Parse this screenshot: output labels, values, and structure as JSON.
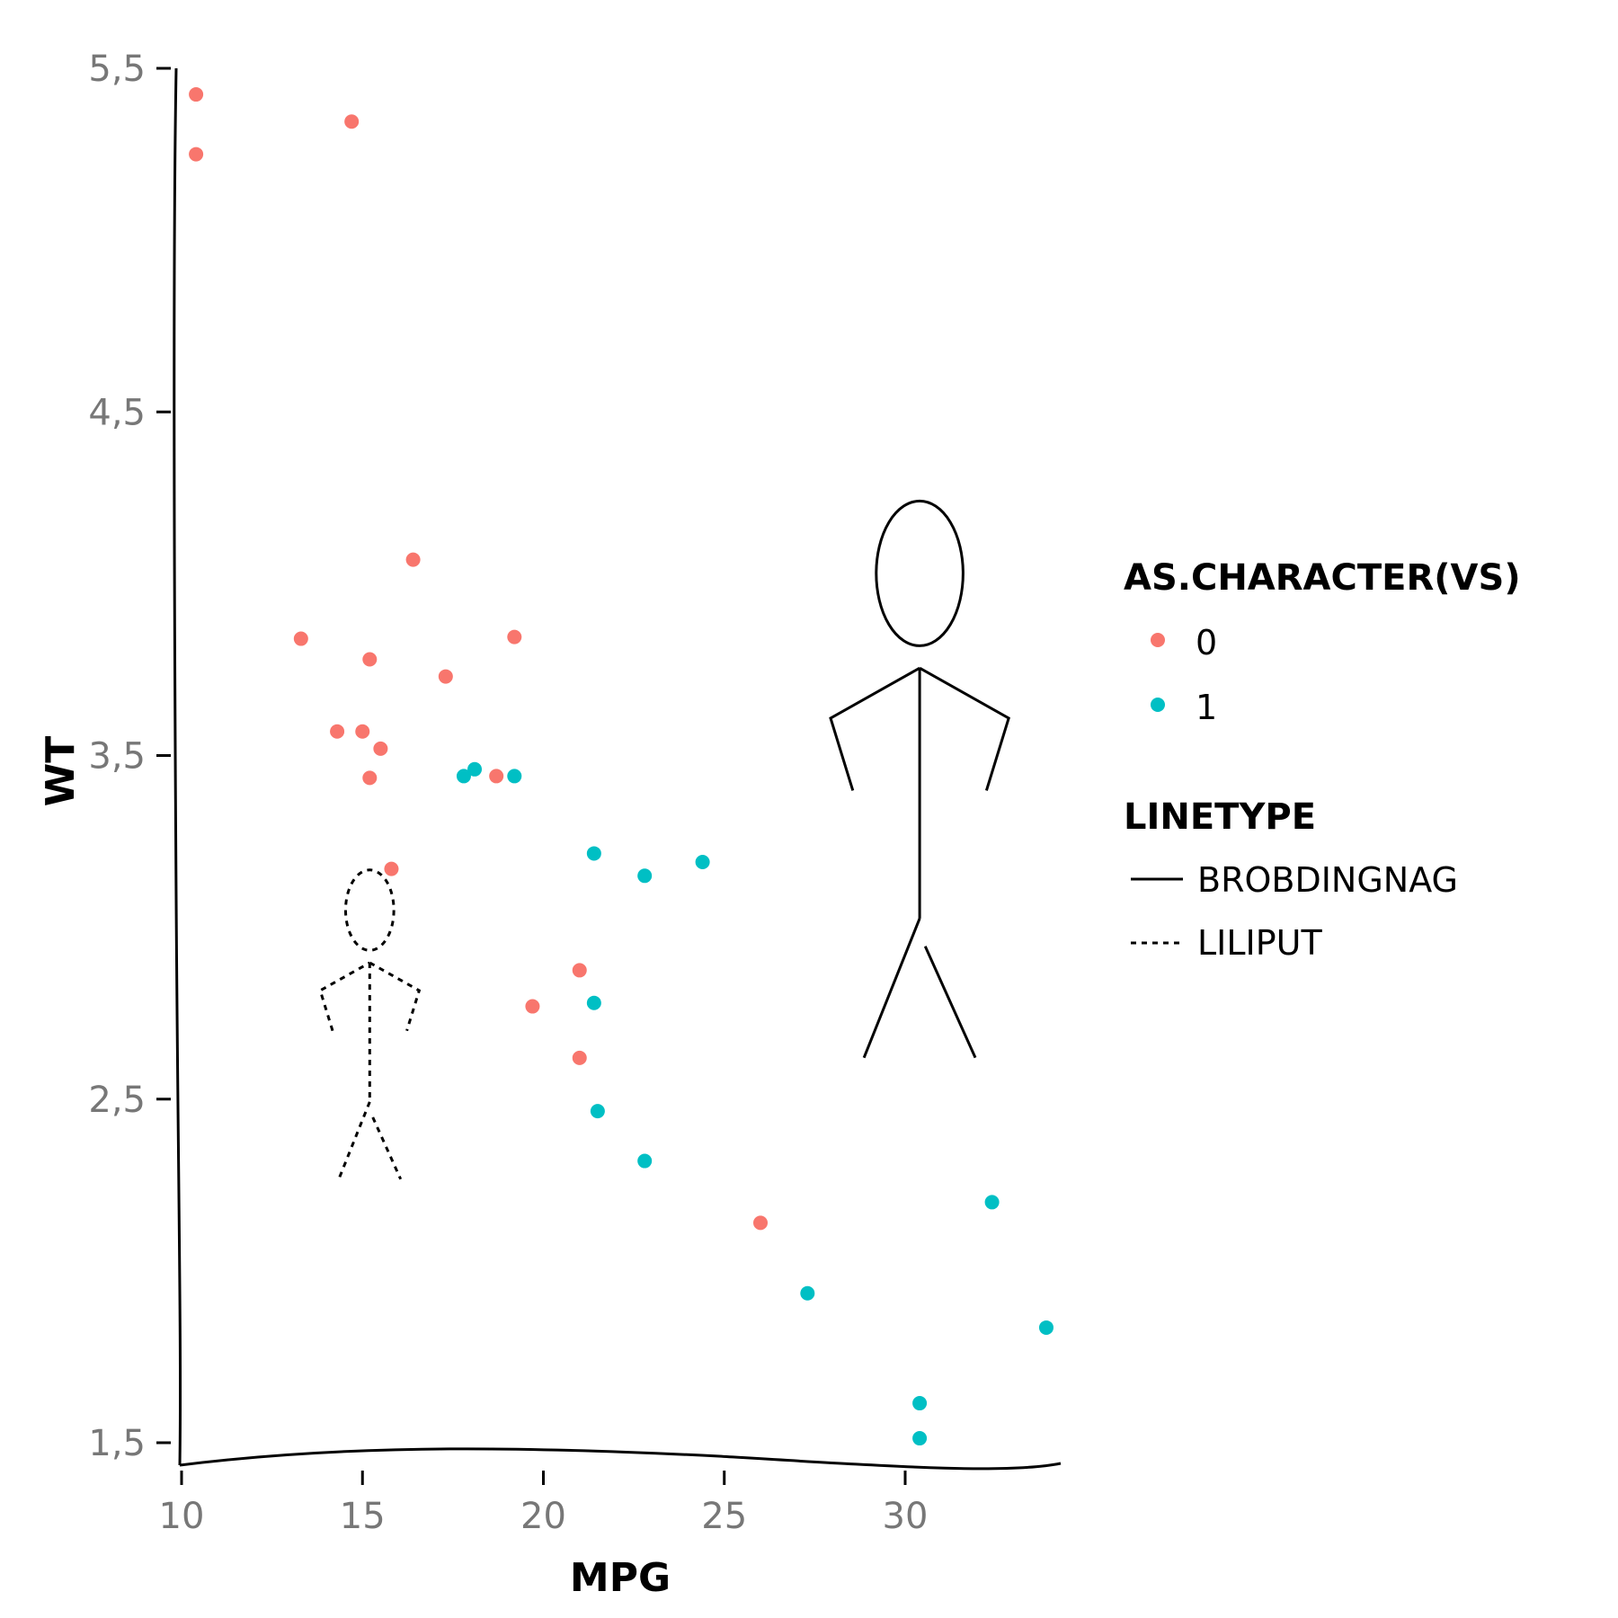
{
  "chart_data": {
    "type": "scatter",
    "xlabel": "MPG",
    "ylabel": "WT",
    "xlim": [
      10,
      34.4
    ],
    "ylim": [
      1.4,
      5.5
    ],
    "x_ticks": [
      10,
      15,
      20,
      25,
      30
    ],
    "x_tick_labels": [
      "10",
      "15",
      "20",
      "25",
      "30"
    ],
    "y_ticks": [
      1.5,
      2.5,
      3.5,
      4.5,
      5.5
    ],
    "y_tick_labels": [
      "1,5",
      "2,5",
      "3,5",
      "4,5",
      "5,5"
    ],
    "grid": false,
    "legend_placement": "right",
    "series": [
      {
        "name": "0",
        "color": "#F8766D",
        "points": [
          [
            10.4,
            5.424
          ],
          [
            10.4,
            5.25
          ],
          [
            14.7,
            5.345
          ],
          [
            16.4,
            4.07
          ],
          [
            13.3,
            3.84
          ],
          [
            19.2,
            3.845
          ],
          [
            15.2,
            3.78
          ],
          [
            17.3,
            3.73
          ],
          [
            14.3,
            3.57
          ],
          [
            15.0,
            3.57
          ],
          [
            15.5,
            3.52
          ],
          [
            15.2,
            3.435
          ],
          [
            18.7,
            3.44
          ],
          [
            15.8,
            3.17
          ],
          [
            21.0,
            2.875
          ],
          [
            19.7,
            2.77
          ],
          [
            21.0,
            2.62
          ],
          [
            26.0,
            2.14
          ]
        ]
      },
      {
        "name": "1",
        "color": "#00BFC4",
        "points": [
          [
            17.8,
            3.44
          ],
          [
            18.1,
            3.46
          ],
          [
            19.2,
            3.44
          ],
          [
            21.4,
            3.215
          ],
          [
            22.8,
            3.15
          ],
          [
            24.4,
            3.19
          ],
          [
            21.4,
            2.78
          ],
          [
            21.5,
            2.465
          ],
          [
            22.8,
            2.32
          ],
          [
            32.4,
            2.2
          ],
          [
            27.3,
            1.935
          ],
          [
            33.9,
            1.835
          ],
          [
            30.4,
            1.615
          ],
          [
            30.4,
            1.513
          ]
        ]
      }
    ],
    "legend": {
      "color_title": "AS.CHARACTER(VS)",
      "color_entries": [
        {
          "label": "0",
          "color": "#F8766D"
        },
        {
          "label": "1",
          "color": "#00BFC4"
        }
      ],
      "linetype_title": "LINETYPE",
      "linetype_entries": [
        {
          "label": "BROBDINGNAG",
          "style": "solid"
        },
        {
          "label": "LILIPUT",
          "style": "dashed"
        }
      ]
    },
    "stick_figures": [
      {
        "name": "brobdingnag",
        "style": "solid",
        "x": 30.4,
        "y_head_center": 4.03,
        "height": 1.62
      },
      {
        "name": "liliput",
        "style": "dashed",
        "x": 15.2,
        "y_head_center": 3.05,
        "height": 0.9
      }
    ]
  }
}
